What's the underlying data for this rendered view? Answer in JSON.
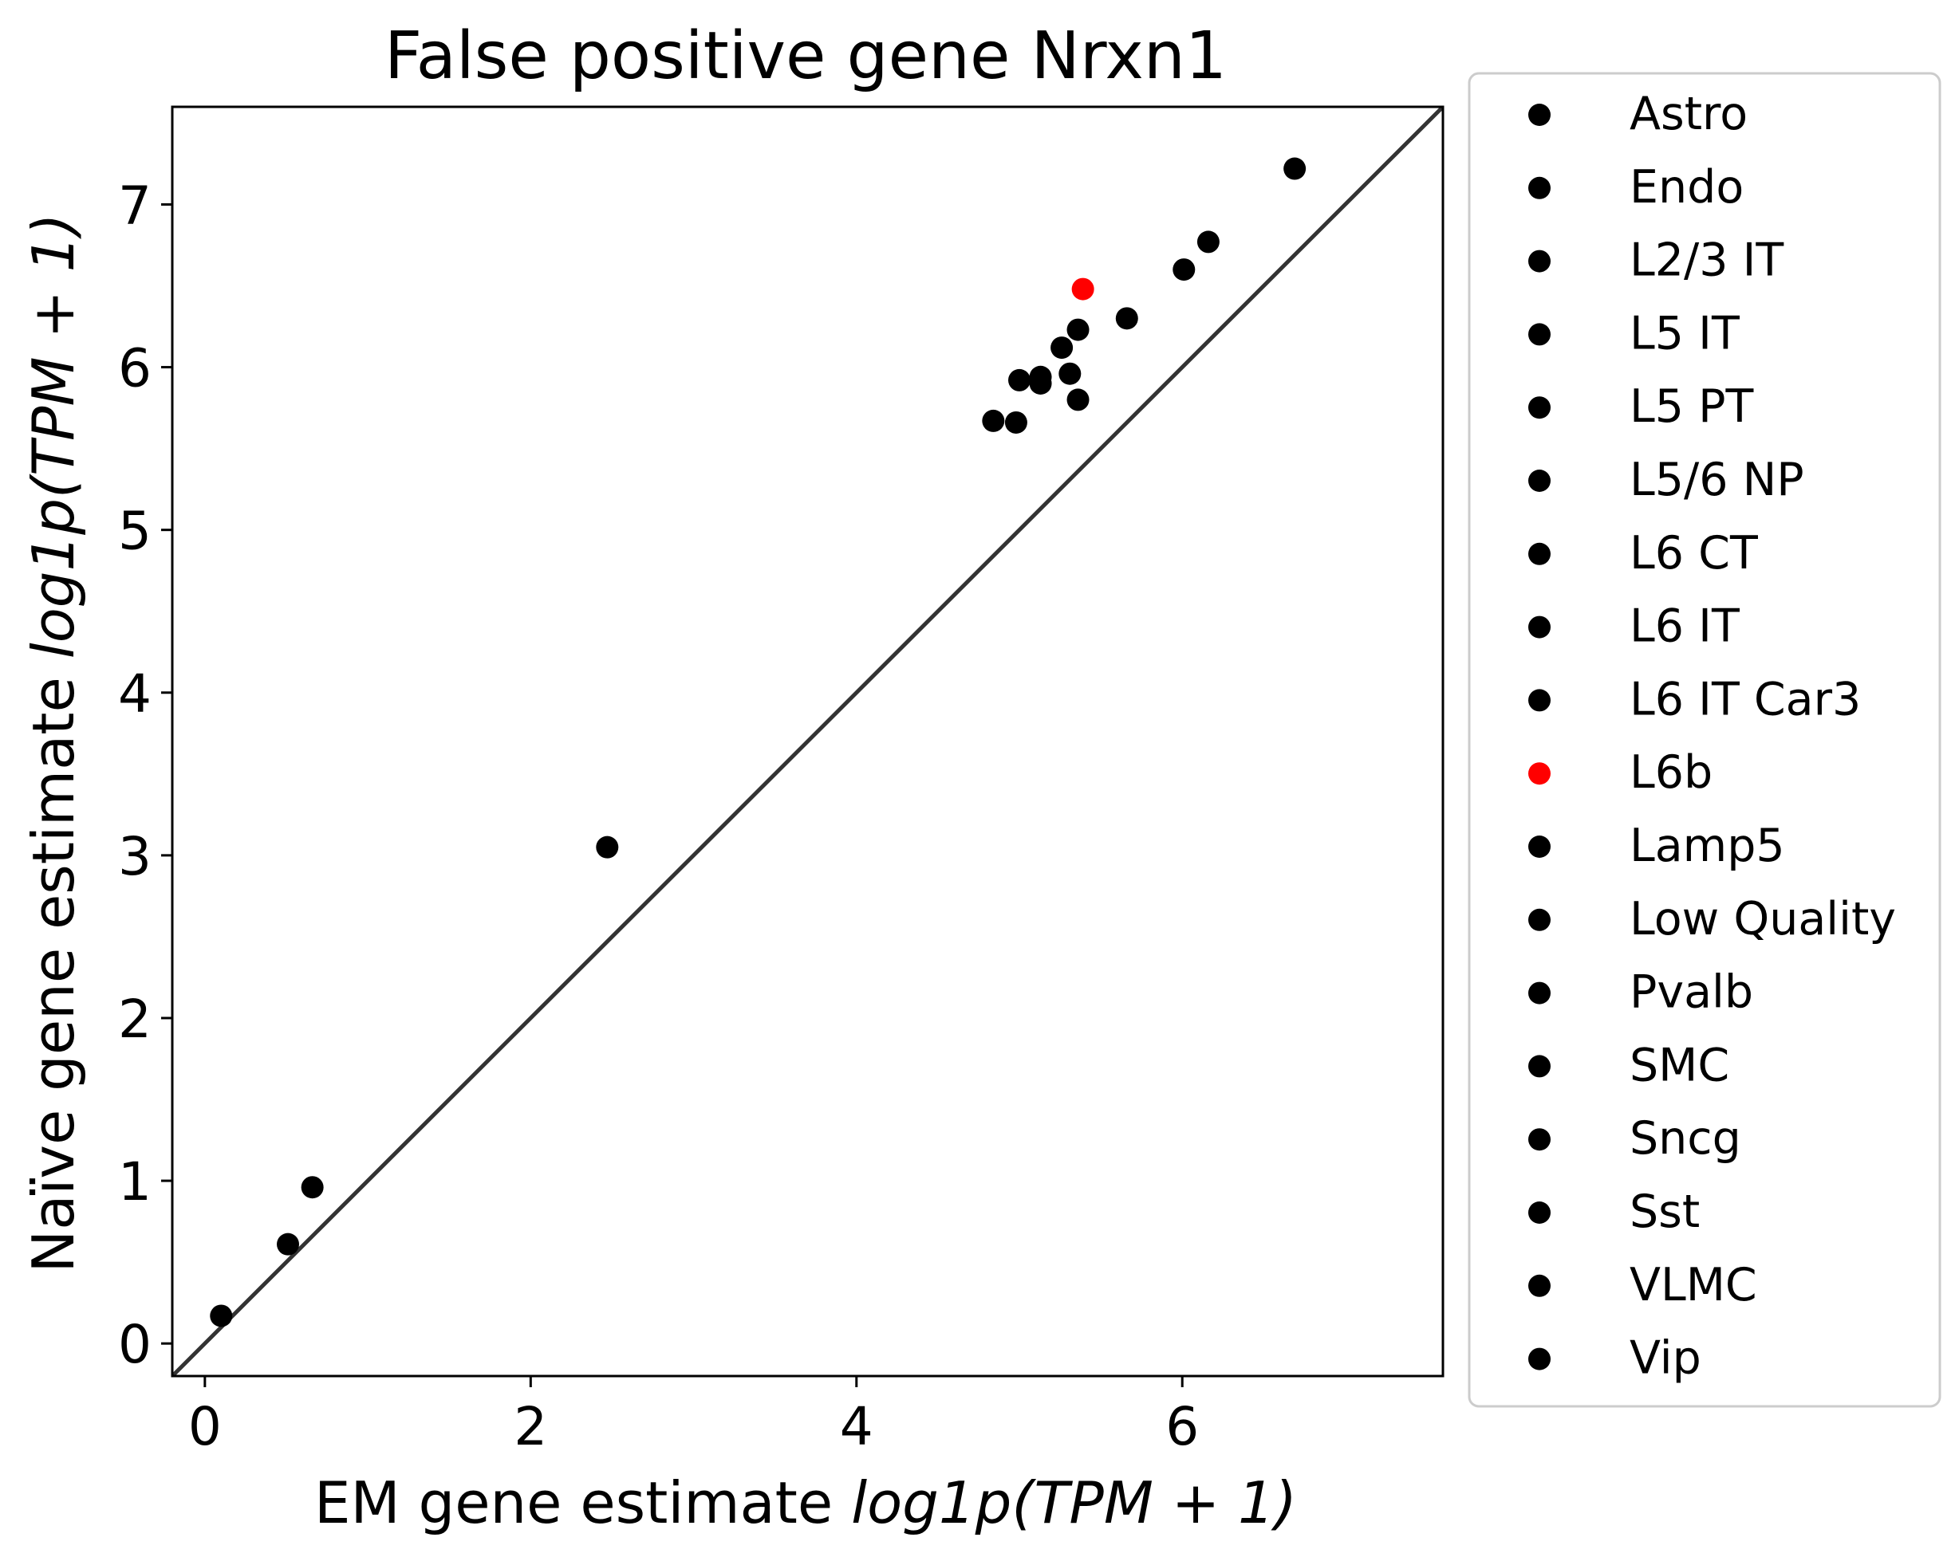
{
  "chart_data": {
    "type": "scatter",
    "title": "False positive gene Nrxn1",
    "xlabel": {
      "text": "EM gene estimate ",
      "math": "log1p(TPM + 1)"
    },
    "ylabel": {
      "text": "Naïve gene estimate ",
      "math": "log1p(TPM + 1)"
    },
    "xlim": [
      -0.2,
      7.6
    ],
    "ylim": [
      -0.2,
      7.6
    ],
    "xticks": [
      0,
      2,
      4,
      6
    ],
    "yticks": [
      0,
      1,
      2,
      3,
      4,
      5,
      6,
      7
    ],
    "grid": false,
    "identity_line": true,
    "legend_position": "outside-right",
    "colors": {
      "default": "#000000",
      "highlight": "#ff0000",
      "line": "#333333"
    },
    "series": [
      {
        "name": "Astro",
        "color": "#000000",
        "x": 0.1,
        "y": 0.17
      },
      {
        "name": "Endo",
        "color": "#000000",
        "x": 0.51,
        "y": 0.61
      },
      {
        "name": "L2/3 IT",
        "color": "#000000",
        "x": 6.69,
        "y": 7.22
      },
      {
        "name": "L5 IT",
        "color": "#000000",
        "x": 6.16,
        "y": 6.77
      },
      {
        "name": "L5 PT",
        "color": "#000000",
        "x": 0.66,
        "y": 0.96
      },
      {
        "name": "L5/6 NP",
        "color": "#000000",
        "x": 2.47,
        "y": 3.05
      },
      {
        "name": "L6 CT",
        "color": "#000000",
        "x": 6.01,
        "y": 6.6
      },
      {
        "name": "L6 IT",
        "color": "#000000",
        "x": 5.66,
        "y": 6.3
      },
      {
        "name": "L6 IT Car3",
        "color": "#000000",
        "x": 5.36,
        "y": 6.23
      },
      {
        "name": "L6b",
        "color": "#ff0000",
        "x": 5.39,
        "y": 6.48
      },
      {
        "name": "Lamp5",
        "color": "#000000",
        "x": 5.26,
        "y": 6.12
      },
      {
        "name": "Low Quality",
        "color": "#000000",
        "x": 5.13,
        "y": 5.94
      },
      {
        "name": "Pvalb",
        "color": "#000000",
        "x": 5.0,
        "y": 5.92
      },
      {
        "name": "SMC",
        "color": "#000000",
        "x": 4.84,
        "y": 5.67
      },
      {
        "name": "Sncg",
        "color": "#000000",
        "x": 4.98,
        "y": 5.66
      },
      {
        "name": "Sst",
        "color": "#000000",
        "x": 5.31,
        "y": 5.96
      },
      {
        "name": "VLMC",
        "color": "#000000",
        "x": 5.36,
        "y": 5.8
      },
      {
        "name": "Vip",
        "color": "#000000",
        "x": 5.13,
        "y": 5.9
      }
    ]
  }
}
